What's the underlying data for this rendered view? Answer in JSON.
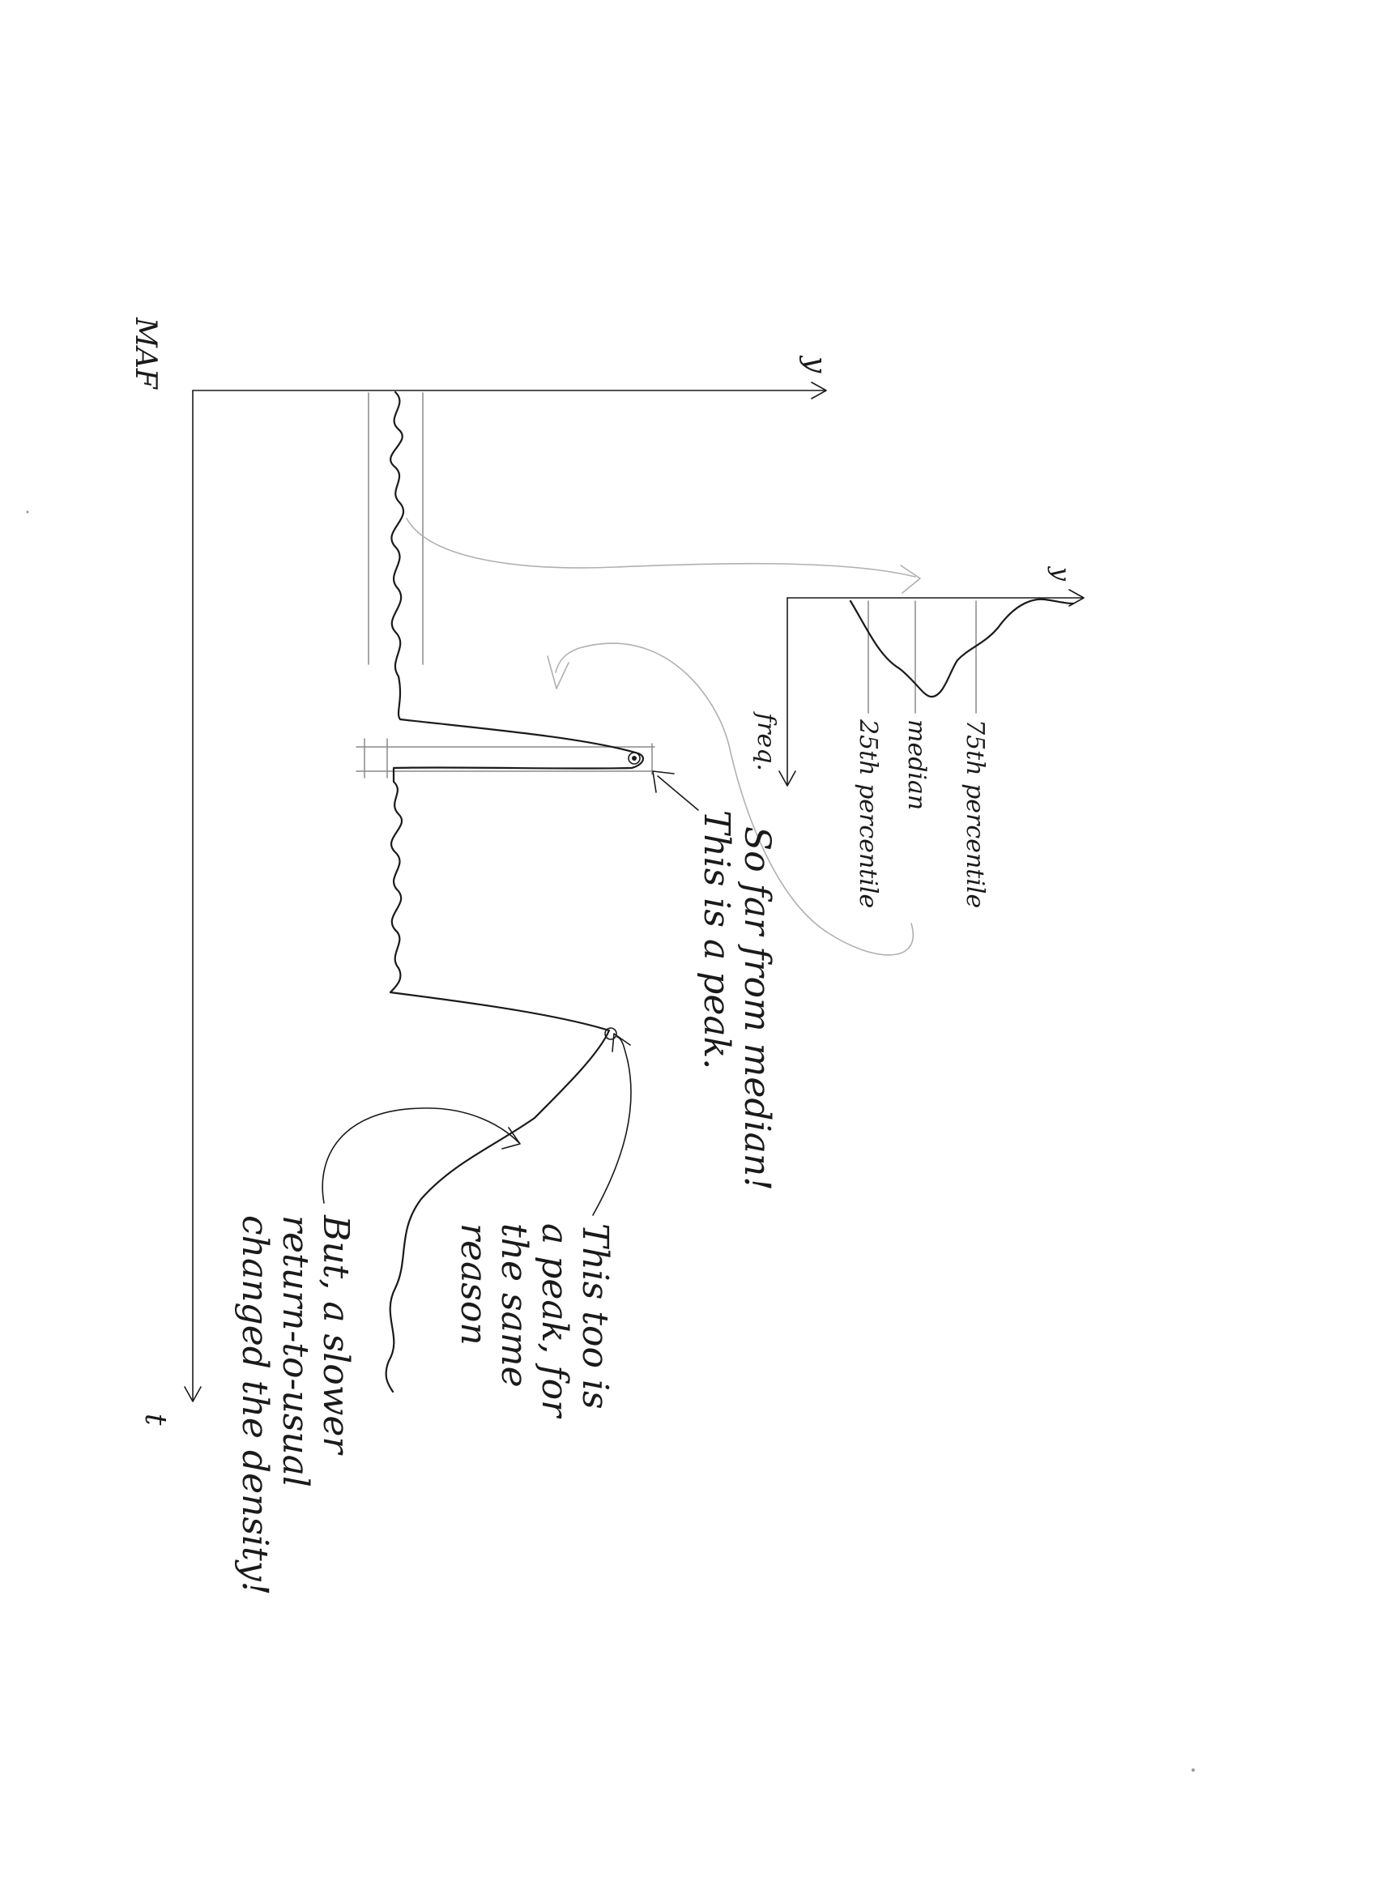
{
  "main_plot": {
    "y_axis_label": "y",
    "t_axis_label": "t",
    "corner_label": "MAF"
  },
  "inset": {
    "axis_y_label": "y",
    "axis_freq_label": "freq.",
    "line_75": "75th percentile",
    "line_median": "median",
    "line_25": "25th percentile"
  },
  "annotations": {
    "peak1_line1": "So far from median!",
    "peak1_line2": "This is a peak.",
    "peak2_line1": "This too is",
    "peak2_line2": "a peak, for",
    "peak2_line3": "the same",
    "peak2_line4": "reason",
    "slow_line1": "But, a slower",
    "slow_line2": "return-to-usual",
    "slow_line3": "changed the density!"
  }
}
